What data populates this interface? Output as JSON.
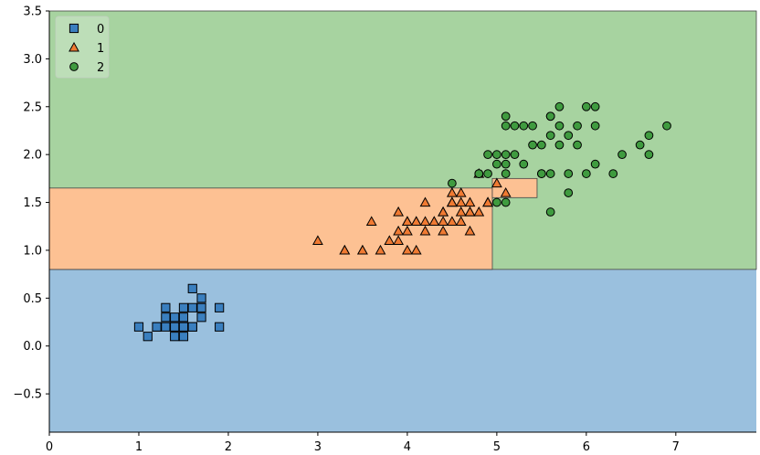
{
  "chart_data": {
    "type": "scatter",
    "title": "",
    "xlabel": "",
    "ylabel": "",
    "xlim": [
      0,
      7.9
    ],
    "ylim": [
      -0.9,
      3.5
    ],
    "xticks": [
      0,
      1,
      2,
      3,
      4,
      5,
      6,
      7
    ],
    "yticks": [
      -0.5,
      0.0,
      0.5,
      1.0,
      1.5,
      2.0,
      2.5,
      3.0,
      3.5
    ],
    "xtick_labels": [
      "0",
      "1",
      "2",
      "3",
      "4",
      "5",
      "6",
      "7"
    ],
    "ytick_labels": [
      "−0.5",
      "0.0",
      "0.5",
      "1.0",
      "1.5",
      "2.0",
      "2.5",
      "3.0",
      "3.5"
    ],
    "grid": false,
    "legend_position": "top-left",
    "background": "decision regions of a classifier",
    "regions": [
      {
        "class": "0",
        "color": "#9ac0de",
        "x": [
          0,
          7.9
        ],
        "y": [
          -0.9,
          0.8
        ]
      },
      {
        "class": "2",
        "color": "#a7d3a0",
        "x": [
          0,
          7.9
        ],
        "y": [
          0.8,
          3.5
        ]
      },
      {
        "class": "1",
        "color": "#fdc193",
        "x": [
          0,
          4.95
        ],
        "y": [
          0.8,
          1.65
        ]
      },
      {
        "class": "1",
        "color": "#fdc193",
        "x": [
          4.95,
          5.45
        ],
        "y": [
          1.55,
          1.75
        ]
      }
    ],
    "series": [
      {
        "name": "0",
        "marker": "square",
        "color": "#3a7fbf",
        "points": [
          [
            1.4,
            0.2
          ],
          [
            1.3,
            0.2
          ],
          [
            1.5,
            0.2
          ],
          [
            1.7,
            0.4
          ],
          [
            1.4,
            0.3
          ],
          [
            1.5,
            0.1
          ],
          [
            1.6,
            0.2
          ],
          [
            1.4,
            0.1
          ],
          [
            1.1,
            0.1
          ],
          [
            1.2,
            0.2
          ],
          [
            1.3,
            0.4
          ],
          [
            1.7,
            0.3
          ],
          [
            1.0,
            0.2
          ],
          [
            1.9,
            0.2
          ],
          [
            1.6,
            0.4
          ],
          [
            1.5,
            0.4
          ],
          [
            1.4,
            0.2
          ],
          [
            1.2,
            0.2
          ],
          [
            1.3,
            0.3
          ],
          [
            1.6,
            0.6
          ],
          [
            1.9,
            0.4
          ],
          [
            1.6,
            0.2
          ],
          [
            1.5,
            0.2
          ],
          [
            1.7,
            0.5
          ],
          [
            1.5,
            0.3
          ]
        ]
      },
      {
        "name": "1",
        "marker": "triangle",
        "color": "#f07a32",
        "points": [
          [
            4.7,
            1.4
          ],
          [
            4.5,
            1.5
          ],
          [
            4.9,
            1.5
          ],
          [
            4.0,
            1.3
          ],
          [
            4.6,
            1.5
          ],
          [
            3.3,
            1.0
          ],
          [
            4.6,
            1.3
          ],
          [
            3.9,
            1.4
          ],
          [
            3.5,
            1.0
          ],
          [
            4.2,
            1.5
          ],
          [
            4.0,
            1.0
          ],
          [
            4.7,
            1.4
          ],
          [
            3.6,
            1.3
          ],
          [
            4.4,
            1.4
          ],
          [
            4.1,
            1.0
          ],
          [
            4.5,
            1.5
          ],
          [
            3.9,
            1.1
          ],
          [
            4.8,
            1.8
          ],
          [
            4.0,
            1.3
          ],
          [
            4.9,
            1.5
          ],
          [
            4.7,
            1.2
          ],
          [
            4.3,
            1.3
          ],
          [
            4.4,
            1.4
          ],
          [
            5.0,
            1.7
          ],
          [
            4.5,
            1.5
          ],
          [
            3.5,
            1.0
          ],
          [
            3.8,
            1.1
          ],
          [
            3.7,
            1.0
          ],
          [
            3.9,
            1.2
          ],
          [
            5.1,
            1.6
          ],
          [
            4.5,
            1.6
          ],
          [
            4.7,
            1.5
          ],
          [
            4.4,
            1.3
          ],
          [
            4.1,
            1.3
          ],
          [
            4.0,
            1.3
          ],
          [
            4.4,
            1.2
          ],
          [
            4.6,
            1.4
          ],
          [
            4.0,
            1.2
          ],
          [
            3.3,
            1.0
          ],
          [
            4.2,
            1.3
          ],
          [
            4.2,
            1.2
          ],
          [
            4.3,
            1.3
          ],
          [
            3.0,
            1.1
          ],
          [
            4.1,
            1.3
          ],
          [
            4.5,
            1.3
          ],
          [
            4.6,
            1.6
          ],
          [
            4.9,
            1.5
          ],
          [
            4.8,
            1.4
          ]
        ]
      },
      {
        "name": "2",
        "marker": "circle",
        "color": "#3f9b3f",
        "points": [
          [
            6.0,
            2.5
          ],
          [
            5.1,
            1.9
          ],
          [
            5.9,
            2.1
          ],
          [
            5.6,
            1.8
          ],
          [
            5.8,
            2.2
          ],
          [
            6.6,
            2.1
          ],
          [
            4.5,
            1.7
          ],
          [
            6.3,
            1.8
          ],
          [
            5.8,
            1.8
          ],
          [
            6.1,
            2.5
          ],
          [
            5.1,
            2.0
          ],
          [
            5.3,
            1.9
          ],
          [
            5.5,
            2.1
          ],
          [
            5.0,
            2.0
          ],
          [
            5.1,
            2.4
          ],
          [
            5.3,
            2.3
          ],
          [
            5.5,
            1.8
          ],
          [
            6.7,
            2.2
          ],
          [
            6.9,
            2.3
          ],
          [
            5.0,
            1.5
          ],
          [
            5.7,
            2.3
          ],
          [
            4.9,
            2.0
          ],
          [
            6.7,
            2.0
          ],
          [
            4.9,
            1.8
          ],
          [
            5.7,
            2.1
          ],
          [
            6.0,
            1.8
          ],
          [
            4.8,
            1.8
          ],
          [
            5.8,
            1.6
          ],
          [
            6.1,
            1.9
          ],
          [
            6.4,
            2.0
          ],
          [
            5.6,
            2.2
          ],
          [
            5.1,
            1.5
          ],
          [
            5.6,
            1.4
          ],
          [
            6.1,
            2.3
          ],
          [
            5.6,
            2.4
          ],
          [
            5.5,
            1.8
          ],
          [
            4.8,
            1.8
          ],
          [
            5.4,
            2.1
          ],
          [
            5.6,
            2.4
          ],
          [
            5.1,
            2.3
          ],
          [
            5.9,
            2.3
          ],
          [
            5.7,
            2.5
          ],
          [
            5.2,
            2.3
          ],
          [
            5.0,
            1.9
          ],
          [
            5.2,
            2.0
          ],
          [
            5.4,
            2.3
          ],
          [
            5.1,
            1.8
          ]
        ]
      }
    ]
  }
}
